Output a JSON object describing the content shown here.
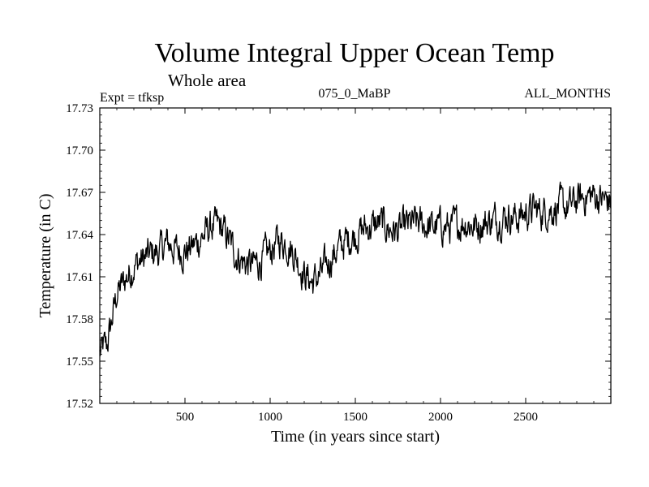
{
  "chart_data": {
    "type": "line",
    "title": "Volume Integral Upper Ocean Temp",
    "subtitle": "Whole area",
    "header_left": "Expt = tfksp",
    "header_center": "075_0_MaBP",
    "header_right": "ALL_MONTHS",
    "xlabel": "Time (in years since start)",
    "ylabel": "Temperature (in C)",
    "xlim": [
      0,
      3000
    ],
    "ylim": [
      17.52,
      17.73
    ],
    "xticks": [
      500,
      1000,
      1500,
      2000,
      2500
    ],
    "xtick_labels": [
      "500",
      "1000",
      "1500",
      "2000",
      "2500"
    ],
    "yticks": [
      17.52,
      17.55,
      17.58,
      17.61,
      17.64,
      17.67,
      17.7,
      17.73
    ],
    "ytick_labels": [
      "17.52",
      "17.55",
      "17.58",
      "17.61",
      "17.64",
      "17.67",
      "17.70",
      "17.73"
    ],
    "grid": false,
    "series": [
      {
        "name": "tfksp",
        "x": [
          0,
          20,
          40,
          60,
          80,
          100,
          150,
          200,
          250,
          300,
          350,
          400,
          450,
          500,
          550,
          600,
          650,
          700,
          750,
          800,
          850,
          900,
          950,
          1000,
          1050,
          1100,
          1150,
          1200,
          1250,
          1300,
          1350,
          1400,
          1450,
          1500,
          1550,
          1600,
          1650,
          1700,
          1750,
          1800,
          1850,
          1900,
          1950,
          2000,
          2050,
          2100,
          2150,
          2200,
          2250,
          2300,
          2350,
          2400,
          2450,
          2500,
          2550,
          2600,
          2650,
          2700,
          2750,
          2800,
          2850,
          2900,
          2950,
          3000
        ],
        "values": [
          17.555,
          17.56,
          17.56,
          17.572,
          17.585,
          17.598,
          17.608,
          17.618,
          17.622,
          17.626,
          17.628,
          17.634,
          17.629,
          17.628,
          17.632,
          17.638,
          17.645,
          17.646,
          17.638,
          17.626,
          17.62,
          17.618,
          17.622,
          17.628,
          17.636,
          17.634,
          17.625,
          17.612,
          17.606,
          17.612,
          17.622,
          17.63,
          17.636,
          17.64,
          17.644,
          17.646,
          17.648,
          17.644,
          17.642,
          17.646,
          17.648,
          17.647,
          17.645,
          17.646,
          17.645,
          17.647,
          17.649,
          17.646,
          17.648,
          17.65,
          17.652,
          17.654,
          17.652,
          17.655,
          17.658,
          17.656,
          17.658,
          17.66,
          17.659,
          17.664,
          17.667,
          17.668,
          17.665,
          17.663
        ]
      }
    ]
  }
}
